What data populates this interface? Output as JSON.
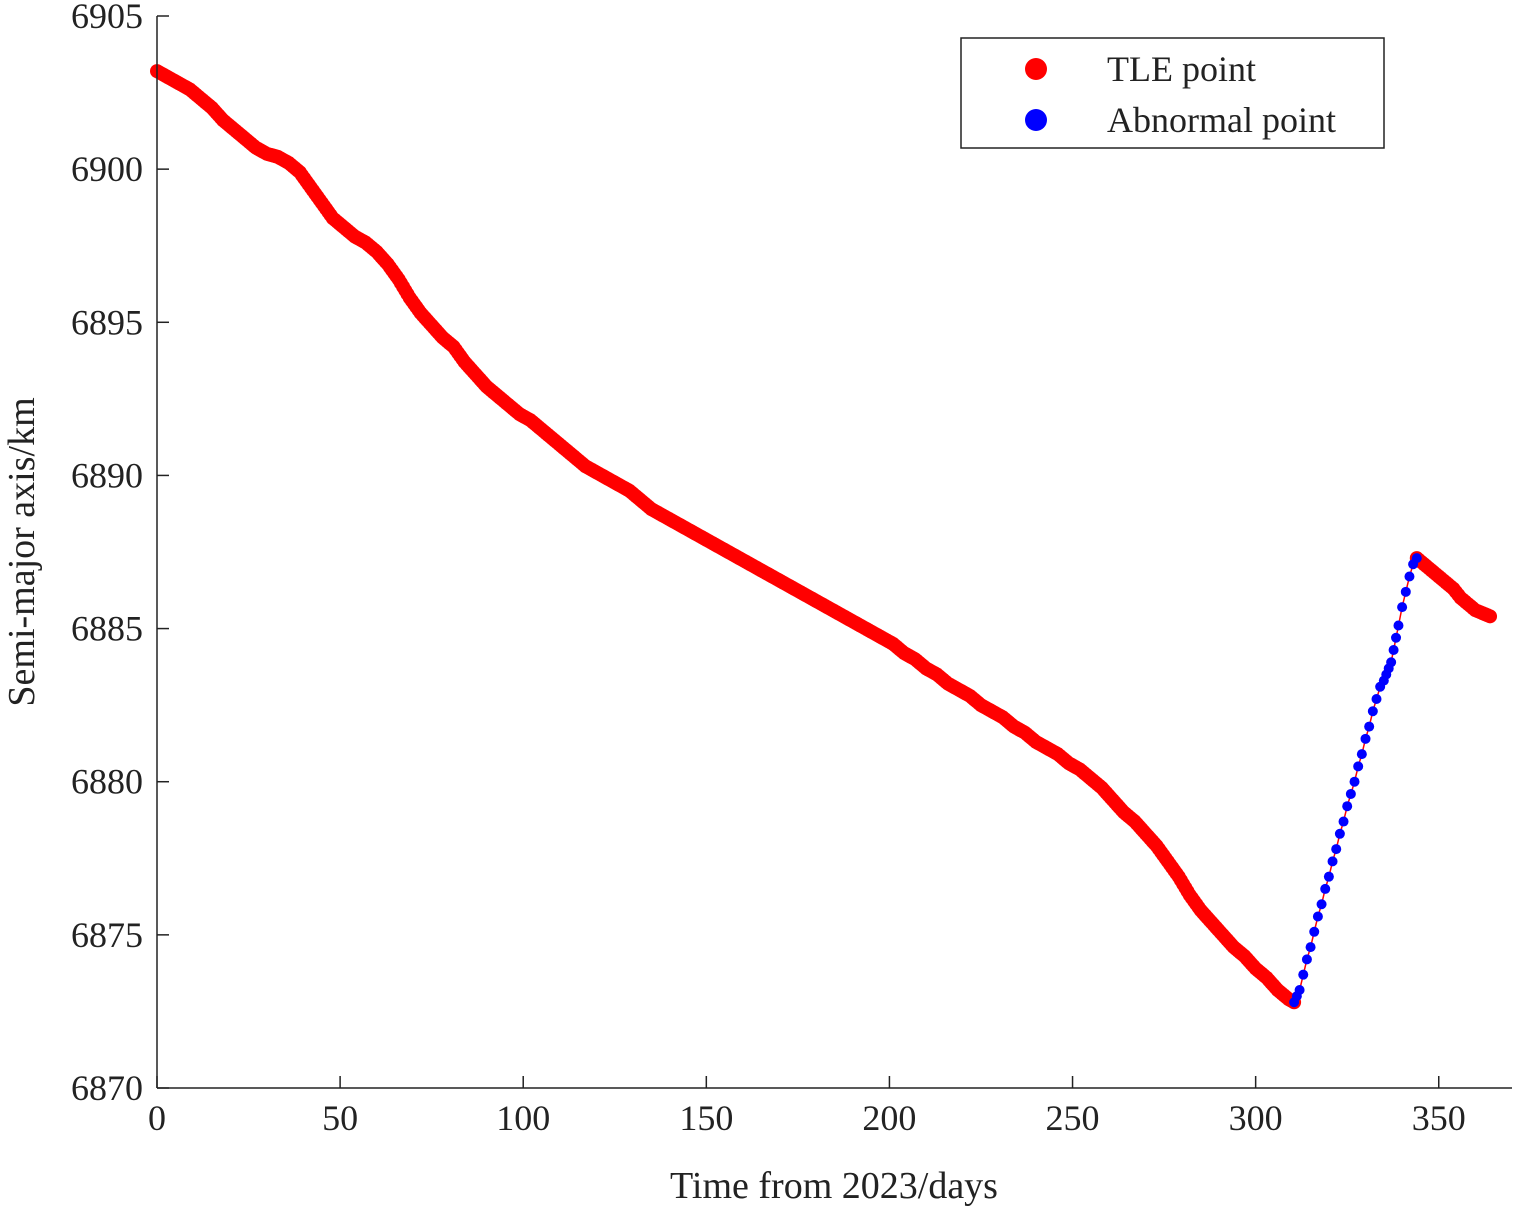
{
  "chart_data": {
    "type": "scatter",
    "title": "",
    "xlabel": "Time from 2023/days",
    "ylabel": "Semi-major axis/km",
    "xlim": [
      0,
      370
    ],
    "ylim": [
      6870,
      6905
    ],
    "xticks": [
      0,
      50,
      100,
      150,
      200,
      250,
      300,
      350
    ],
    "yticks": [
      6870,
      6875,
      6880,
      6885,
      6890,
      6895,
      6900,
      6905
    ],
    "grid": false,
    "legend_position": "top-right",
    "series": [
      {
        "name": "TLE point",
        "color": "#ff0000",
        "marker": "circle",
        "connected_line": true,
        "points": [
          [
            0,
            6903.2
          ],
          [
            3,
            6903.0
          ],
          [
            6,
            6902.8
          ],
          [
            9,
            6902.6
          ],
          [
            12,
            6902.3
          ],
          [
            15,
            6902.0
          ],
          [
            18,
            6901.6
          ],
          [
            21,
            6901.3
          ],
          [
            24,
            6901.0
          ],
          [
            27,
            6900.7
          ],
          [
            30,
            6900.5
          ],
          [
            33,
            6900.4
          ],
          [
            36,
            6900.2
          ],
          [
            39,
            6899.9
          ],
          [
            42,
            6899.4
          ],
          [
            45,
            6898.9
          ],
          [
            48,
            6898.4
          ],
          [
            51,
            6898.1
          ],
          [
            54,
            6897.8
          ],
          [
            57,
            6897.6
          ],
          [
            60,
            6897.3
          ],
          [
            63,
            6896.9
          ],
          [
            66,
            6896.4
          ],
          [
            69,
            6895.8
          ],
          [
            72,
            6895.3
          ],
          [
            75,
            6894.9
          ],
          [
            78,
            6894.5
          ],
          [
            81,
            6894.2
          ],
          [
            84,
            6893.7
          ],
          [
            87,
            6893.3
          ],
          [
            90,
            6892.9
          ],
          [
            93,
            6892.6
          ],
          [
            96,
            6892.3
          ],
          [
            99,
            6892.0
          ],
          [
            102,
            6891.8
          ],
          [
            105,
            6891.5
          ],
          [
            108,
            6891.2
          ],
          [
            111,
            6890.9
          ],
          [
            114,
            6890.6
          ],
          [
            117,
            6890.3
          ],
          [
            120,
            6890.1
          ],
          [
            123,
            6889.9
          ],
          [
            126,
            6889.7
          ],
          [
            129,
            6889.5
          ],
          [
            132,
            6889.2
          ],
          [
            135,
            6888.9
          ],
          [
            138,
            6888.7
          ],
          [
            141,
            6888.5
          ],
          [
            144,
            6888.3
          ],
          [
            147,
            6888.1
          ],
          [
            150,
            6887.9
          ],
          [
            153,
            6887.7
          ],
          [
            156,
            6887.5
          ],
          [
            159,
            6887.3
          ],
          [
            162,
            6887.1
          ],
          [
            165,
            6886.9
          ],
          [
            168,
            6886.7
          ],
          [
            171,
            6886.5
          ],
          [
            174,
            6886.3
          ],
          [
            177,
            6886.1
          ],
          [
            180,
            6885.9
          ],
          [
            183,
            6885.7
          ],
          [
            186,
            6885.5
          ],
          [
            189,
            6885.3
          ],
          [
            192,
            6885.1
          ],
          [
            195,
            6884.9
          ],
          [
            198,
            6884.7
          ],
          [
            201,
            6884.5
          ],
          [
            204,
            6884.2
          ],
          [
            207,
            6884.0
          ],
          [
            210,
            6883.7
          ],
          [
            213,
            6883.5
          ],
          [
            216,
            6883.2
          ],
          [
            219,
            6883.0
          ],
          [
            222,
            6882.8
          ],
          [
            225,
            6882.5
          ],
          [
            228,
            6882.3
          ],
          [
            231,
            6882.1
          ],
          [
            234,
            6881.8
          ],
          [
            237,
            6881.6
          ],
          [
            240,
            6881.3
          ],
          [
            243,
            6881.1
          ],
          [
            246,
            6880.9
          ],
          [
            249,
            6880.6
          ],
          [
            252,
            6880.4
          ],
          [
            255,
            6880.1
          ],
          [
            258,
            6879.8
          ],
          [
            261,
            6879.4
          ],
          [
            264,
            6879.0
          ],
          [
            267,
            6878.7
          ],
          [
            270,
            6878.3
          ],
          [
            273,
            6877.9
          ],
          [
            276,
            6877.4
          ],
          [
            279,
            6876.9
          ],
          [
            282,
            6876.3
          ],
          [
            285,
            6875.8
          ],
          [
            288,
            6875.4
          ],
          [
            291,
            6875.0
          ],
          [
            294,
            6874.6
          ],
          [
            297,
            6874.3
          ],
          [
            300,
            6873.9
          ],
          [
            303,
            6873.6
          ],
          [
            306,
            6873.2
          ],
          [
            309,
            6872.9
          ],
          [
            310.5,
            6872.8
          ],
          [
            344,
            6887.3
          ],
          [
            346,
            6887.1
          ],
          [
            348,
            6886.9
          ],
          [
            350,
            6886.7
          ],
          [
            352,
            6886.5
          ],
          [
            354,
            6886.3
          ],
          [
            356,
            6886.0
          ],
          [
            358,
            6885.8
          ],
          [
            360,
            6885.6
          ],
          [
            362,
            6885.5
          ],
          [
            364,
            6885.4
          ]
        ]
      },
      {
        "name": "Abnormal point",
        "color": "#0000ff",
        "marker": "circle",
        "points": [
          [
            310.5,
            6872.8
          ],
          [
            312,
            6873.2
          ],
          [
            313,
            6873.7
          ],
          [
            314,
            6874.2
          ],
          [
            315,
            6874.6
          ],
          [
            316,
            6875.1
          ],
          [
            317,
            6875.6
          ],
          [
            318,
            6876.0
          ],
          [
            319,
            6876.5
          ],
          [
            320,
            6876.9
          ],
          [
            321,
            6877.4
          ],
          [
            322,
            6877.8
          ],
          [
            323,
            6878.3
          ],
          [
            324,
            6878.7
          ],
          [
            325,
            6879.2
          ],
          [
            326,
            6879.6
          ],
          [
            327,
            6880.0
          ],
          [
            328,
            6880.5
          ],
          [
            329,
            6880.9
          ],
          [
            330,
            6881.4
          ],
          [
            331,
            6881.8
          ],
          [
            332,
            6882.3
          ],
          [
            333,
            6882.7
          ],
          [
            334,
            6883.1
          ],
          [
            335,
            6883.3
          ],
          [
            337,
            6883.9
          ],
          [
            339,
            6885.1
          ],
          [
            340,
            6885.7
          ],
          [
            341,
            6886.2
          ],
          [
            342,
            6886.7
          ],
          [
            343,
            6887.1
          ],
          [
            344,
            6887.3
          ]
        ]
      }
    ]
  }
}
